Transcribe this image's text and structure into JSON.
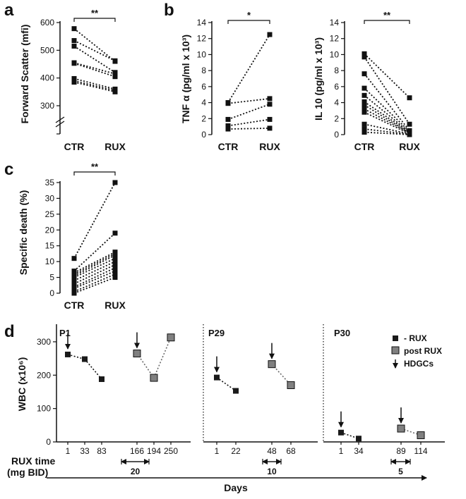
{
  "chart_data": [
    {
      "panel": "a",
      "type": "scatter",
      "ylabel": "Forward Scatter (mfi)",
      "categories": [
        "CTR",
        "RUX"
      ],
      "yticks": [
        "300",
        "400",
        "500",
        "600"
      ],
      "ylim": [
        300,
        600
      ],
      "axis_break": true,
      "significance": "**",
      "pairs": [
        [
          578,
          460
        ],
        [
          535,
          462
        ],
        [
          515,
          420
        ],
        [
          455,
          415
        ],
        [
          453,
          405
        ],
        [
          398,
          360
        ],
        [
          390,
          355
        ],
        [
          385,
          350
        ]
      ]
    },
    {
      "panel": "b",
      "type": "scatter",
      "ylabel": "TNF α (pg/ml x 10³)",
      "categories": [
        "CTR",
        "RUX"
      ],
      "yticks": [
        "0",
        "2",
        "4",
        "6",
        "8",
        "10",
        "12",
        "14"
      ],
      "ylim": [
        0,
        14
      ],
      "significance": "*",
      "pairs": [
        [
          4.0,
          12.5
        ],
        [
          3.9,
          4.5
        ],
        [
          1.9,
          3.8
        ],
        [
          1.1,
          1.9
        ],
        [
          0.7,
          0.8
        ]
      ]
    },
    {
      "panel": "",
      "type": "scatter",
      "ylabel": "IL 10 (pg/ml x 10³)",
      "categories": [
        "CTR",
        "RUX"
      ],
      "yticks": [
        "0",
        "2",
        "4",
        "6",
        "8",
        "10",
        "12",
        "14"
      ],
      "ylim": [
        0,
        14
      ],
      "significance": "**",
      "pairs": [
        [
          10.1,
          4.6
        ],
        [
          9.7,
          1.3
        ],
        [
          7.6,
          0.5
        ],
        [
          5.8,
          0.4
        ],
        [
          4.9,
          0.3
        ],
        [
          4.1,
          0.3
        ],
        [
          3.7,
          0.2
        ],
        [
          3.2,
          0.2
        ],
        [
          2.8,
          0.1
        ],
        [
          1.3,
          0.1
        ],
        [
          0.7,
          0.05
        ],
        [
          0.3,
          0.0
        ]
      ]
    },
    {
      "panel": "c",
      "type": "scatter",
      "ylabel": "Specific death (%)",
      "categories": [
        "CTR",
        "RUX"
      ],
      "yticks": [
        "0",
        "5",
        "10",
        "15",
        "20",
        "25",
        "30",
        "35"
      ],
      "ylim": [
        0,
        35
      ],
      "significance": "**",
      "pairs": [
        [
          11,
          35
        ],
        [
          7,
          19
        ],
        [
          6.5,
          13
        ],
        [
          6,
          12.5
        ],
        [
          5.5,
          12
        ],
        [
          5,
          11
        ],
        [
          4,
          10
        ],
        [
          3,
          9
        ],
        [
          2,
          8
        ],
        [
          1.5,
          7
        ],
        [
          0.5,
          6
        ],
        [
          0,
          5
        ]
      ]
    },
    {
      "panel": "d",
      "type": "line",
      "ylabel": "WBC (x10⁶)",
      "xlabel": "Days",
      "yticks": [
        "0",
        "100",
        "200",
        "300"
      ],
      "ylim": [
        0,
        340
      ],
      "rux_time_label": [
        "RUX time",
        "(mg BID)"
      ],
      "legend": {
        "position": "top-right",
        "items": [
          {
            "label": "- RUX",
            "color": "#1a1a1a"
          },
          {
            "label": "post RUX",
            "color": "#808080"
          },
          {
            "label": "HDGCs",
            "symbol": "arrow"
          }
        ]
      },
      "patients": [
        {
          "name": "P1",
          "days": [
            "1",
            "33",
            "83",
            "166",
            "194",
            "250"
          ],
          "wbc": [
            262,
            248,
            188,
            265,
            192,
            313
          ],
          "status": [
            "pre",
            "pre",
            "pre",
            "post",
            "post",
            "post"
          ],
          "hdgc_at": [
            0,
            3
          ],
          "rux_dose": "20"
        },
        {
          "name": "P29",
          "days": [
            "1",
            "22",
            "48",
            "68"
          ],
          "wbc": [
            193,
            153,
            233,
            170
          ],
          "status": [
            "pre",
            "pre",
            "post",
            "post"
          ],
          "hdgc_at": [
            0,
            2
          ],
          "rux_dose": "10"
        },
        {
          "name": "P30",
          "days": [
            "1",
            "34",
            "89",
            "114"
          ],
          "wbc": [
            28,
            10,
            40,
            20
          ],
          "status": [
            "pre",
            "pre",
            "post",
            "post"
          ],
          "hdgc_at": [
            0,
            2
          ],
          "rux_dose": "5"
        }
      ]
    }
  ]
}
